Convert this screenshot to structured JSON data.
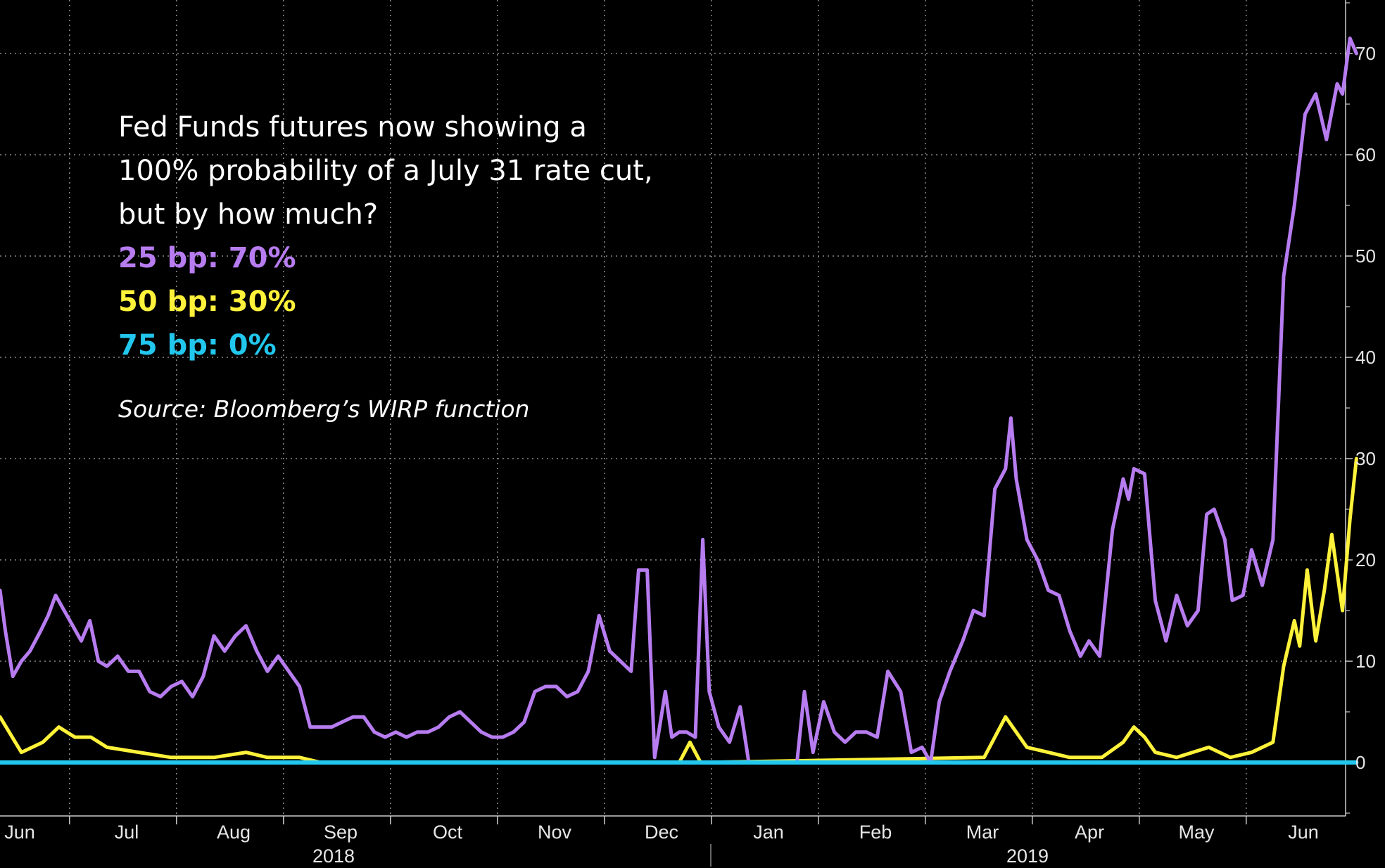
{
  "annotation": {
    "line1": "Fed Funds futures now showing a",
    "line2": "100% probability of a July 31 rate cut,",
    "line3": "but by how much?",
    "bp25": "25 bp: 70%",
    "bp50": "50 bp: 30%",
    "bp75": "75 bp: 0%",
    "source": "Source: Bloomberg’s WIRP function"
  },
  "colors": {
    "background": "#000000",
    "bp25": "#b77cf0",
    "bp50": "#fff23a",
    "bp75": "#22c7ee",
    "grid": "#8a8a8a",
    "text": "#ffffff"
  },
  "chart_data": {
    "type": "line",
    "title": "",
    "xlabel": "",
    "ylabel": "",
    "ylim": [
      -5,
      75
    ],
    "yticks": [
      0,
      10,
      20,
      30,
      40,
      50,
      60,
      70
    ],
    "x_months": [
      "Jun",
      "Jul",
      "Aug",
      "Sep",
      "Oct",
      "Nov",
      "Dec",
      "Jan",
      "Feb",
      "Mar",
      "Apr",
      "May",
      "Jun"
    ],
    "x_years": [
      "2018",
      "2019"
    ],
    "grid": true,
    "series": [
      {
        "name": "25 bp",
        "color": "#b77cf0",
        "points": [
          [
            0,
            17
          ],
          [
            0.05,
            13
          ],
          [
            0.12,
            8.5
          ],
          [
            0.2,
            10
          ],
          [
            0.28,
            11
          ],
          [
            0.38,
            13
          ],
          [
            0.45,
            14.5
          ],
          [
            0.52,
            16.5
          ],
          [
            0.6,
            15
          ],
          [
            0.68,
            13.5
          ],
          [
            0.76,
            12
          ],
          [
            0.84,
            14
          ],
          [
            0.92,
            10
          ],
          [
            1,
            9.5
          ],
          [
            1.1,
            10.5
          ],
          [
            1.2,
            9
          ],
          [
            1.3,
            9
          ],
          [
            1.4,
            7
          ],
          [
            1.5,
            6.5
          ],
          [
            1.6,
            7.5
          ],
          [
            1.7,
            8
          ],
          [
            1.8,
            6.5
          ],
          [
            1.9,
            8.5
          ],
          [
            2,
            12.5
          ],
          [
            2.1,
            11
          ],
          [
            2.2,
            12.5
          ],
          [
            2.3,
            13.5
          ],
          [
            2.4,
            11
          ],
          [
            2.5,
            9
          ],
          [
            2.6,
            10.5
          ],
          [
            2.7,
            9
          ],
          [
            2.8,
            7.5
          ],
          [
            2.9,
            3.5
          ],
          [
            3,
            3.5
          ],
          [
            3.1,
            3.5
          ],
          [
            3.2,
            4
          ],
          [
            3.3,
            4.5
          ],
          [
            3.4,
            4.5
          ],
          [
            3.5,
            3
          ],
          [
            3.6,
            2.5
          ],
          [
            3.7,
            3
          ],
          [
            3.8,
            2.5
          ],
          [
            3.9,
            3
          ],
          [
            4,
            3
          ],
          [
            4.1,
            3.5
          ],
          [
            4.2,
            4.5
          ],
          [
            4.3,
            5
          ],
          [
            4.4,
            4
          ],
          [
            4.5,
            3
          ],
          [
            4.6,
            2.5
          ],
          [
            4.7,
            2.5
          ],
          [
            4.8,
            3
          ],
          [
            4.9,
            4
          ],
          [
            5,
            7
          ],
          [
            5.1,
            7.5
          ],
          [
            5.2,
            7.5
          ],
          [
            5.3,
            6.5
          ],
          [
            5.4,
            7
          ],
          [
            5.5,
            9
          ],
          [
            5.6,
            14.5
          ],
          [
            5.7,
            11
          ],
          [
            5.8,
            10
          ],
          [
            5.9,
            9
          ],
          [
            5.97,
            19
          ],
          [
            6.05,
            19
          ],
          [
            6.12,
            0.5
          ],
          [
            6.22,
            7
          ],
          [
            6.28,
            2.5
          ],
          [
            6.35,
            3
          ],
          [
            6.42,
            3
          ],
          [
            6.5,
            2.5
          ],
          [
            6.57,
            22
          ],
          [
            6.63,
            7
          ],
          [
            6.72,
            3.5
          ],
          [
            6.82,
            2
          ],
          [
            6.92,
            5.5
          ],
          [
            7,
            0
          ],
          [
            7.45,
            0
          ],
          [
            7.52,
            7
          ],
          [
            7.6,
            1
          ],
          [
            7.7,
            6
          ],
          [
            7.8,
            3
          ],
          [
            7.9,
            2
          ],
          [
            8,
            3
          ],
          [
            8.1,
            3
          ],
          [
            8.2,
            2.5
          ],
          [
            8.3,
            9
          ],
          [
            8.42,
            7
          ],
          [
            8.52,
            1
          ],
          [
            8.62,
            1.5
          ],
          [
            8.7,
            0
          ],
          [
            8.78,
            6
          ],
          [
            8.88,
            9
          ],
          [
            9,
            12
          ],
          [
            9.1,
            15
          ],
          [
            9.2,
            14.5
          ],
          [
            9.3,
            27
          ],
          [
            9.4,
            29
          ],
          [
            9.45,
            34
          ],
          [
            9.5,
            28
          ],
          [
            9.6,
            22
          ],
          [
            9.7,
            20
          ],
          [
            9.8,
            17
          ],
          [
            9.9,
            16.5
          ],
          [
            10,
            13
          ],
          [
            10.1,
            10.5
          ],
          [
            10.18,
            12
          ],
          [
            10.28,
            10.5
          ],
          [
            10.4,
            23
          ],
          [
            10.5,
            28
          ],
          [
            10.55,
            26
          ],
          [
            10.6,
            29
          ],
          [
            10.7,
            28.5
          ],
          [
            10.8,
            16
          ],
          [
            10.9,
            12
          ],
          [
            11,
            16.5
          ],
          [
            11.1,
            13.5
          ],
          [
            11.2,
            15
          ],
          [
            11.28,
            24.5
          ],
          [
            11.35,
            25
          ],
          [
            11.45,
            22
          ],
          [
            11.52,
            16
          ],
          [
            11.62,
            16.5
          ],
          [
            11.7,
            21
          ],
          [
            11.8,
            17.5
          ],
          [
            11.9,
            22
          ],
          [
            12,
            48
          ],
          [
            12.1,
            55
          ],
          [
            12.2,
            64
          ],
          [
            12.3,
            66
          ],
          [
            12.4,
            61.5
          ],
          [
            12.5,
            67
          ],
          [
            12.55,
            66
          ],
          [
            12.62,
            71.5
          ],
          [
            12.68,
            70
          ]
        ]
      },
      {
        "name": "50 bp",
        "color": "#fff23a",
        "points": [
          [
            0,
            4.5
          ],
          [
            0.2,
            1
          ],
          [
            0.4,
            2
          ],
          [
            0.55,
            3.5
          ],
          [
            0.7,
            2.5
          ],
          [
            0.85,
            2.5
          ],
          [
            1,
            1.5
          ],
          [
            1.3,
            1
          ],
          [
            1.6,
            0.5
          ],
          [
            2,
            0.5
          ],
          [
            2.3,
            1
          ],
          [
            2.5,
            0.5
          ],
          [
            2.8,
            0.5
          ],
          [
            3,
            0
          ],
          [
            6.35,
            0
          ],
          [
            6.45,
            2
          ],
          [
            6.55,
            0
          ],
          [
            9.2,
            0.5
          ],
          [
            9.3,
            2.5
          ],
          [
            9.4,
            4.5
          ],
          [
            9.5,
            3
          ],
          [
            9.6,
            1.5
          ],
          [
            9.8,
            1
          ],
          [
            10,
            0.5
          ],
          [
            10.3,
            0.5
          ],
          [
            10.5,
            2
          ],
          [
            10.6,
            3.5
          ],
          [
            10.7,
            2.5
          ],
          [
            10.8,
            1
          ],
          [
            11,
            0.5
          ],
          [
            11.3,
            1.5
          ],
          [
            11.5,
            0.5
          ],
          [
            11.7,
            1
          ],
          [
            11.9,
            2
          ],
          [
            12,
            9.5
          ],
          [
            12.1,
            14
          ],
          [
            12.15,
            11.5
          ],
          [
            12.22,
            19
          ],
          [
            12.3,
            12
          ],
          [
            12.38,
            17
          ],
          [
            12.45,
            22.5
          ],
          [
            12.55,
            15
          ],
          [
            12.62,
            24
          ],
          [
            12.68,
            30
          ]
        ]
      },
      {
        "name": "75 bp",
        "color": "#22c7ee",
        "points": [
          [
            0,
            0
          ],
          [
            12.68,
            0
          ]
        ]
      }
    ]
  }
}
